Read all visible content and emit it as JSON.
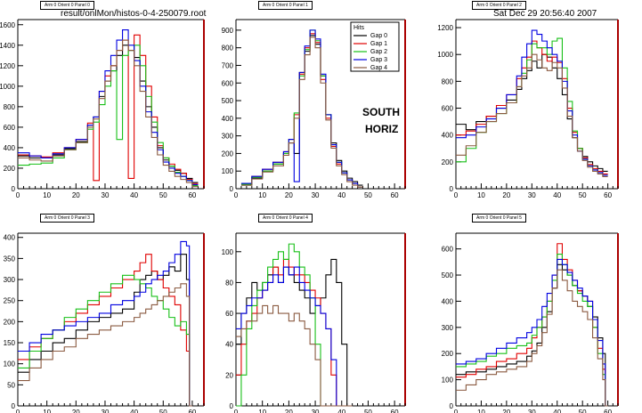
{
  "header": {
    "filename": "result/onlMon/histos-0-4-250079.root",
    "timestamp": "Sat Dec 29 20:56:40 2007"
  },
  "annotations": {
    "line1": "SOUTH",
    "line2": "HORIZ"
  },
  "legend": {
    "title": "Hits",
    "entries": [
      "Gap 0",
      "Gap 1",
      "Gap 2",
      "Gap 3",
      "Gap 4"
    ]
  },
  "colors": {
    "gap0": "#000000",
    "gap1": "#e00000",
    "gap2": "#18c018",
    "gap3": "#0000e0",
    "gap4": "#8a5a40",
    "frame_right": "#aa0000"
  },
  "chart_data": [
    {
      "type": "line",
      "panel_title": "Arm 0 Orient 0 Panel 0",
      "xlim": [
        0,
        64
      ],
      "ylim": [
        0,
        1650
      ],
      "xticks": [
        0,
        10,
        20,
        30,
        40,
        50,
        60
      ],
      "yticks": [
        0,
        200,
        400,
        600,
        800,
        1000,
        1200,
        1400,
        1600
      ],
      "x": [
        0,
        4,
        8,
        12,
        16,
        20,
        24,
        26,
        28,
        30,
        32,
        34,
        36,
        38,
        40,
        42,
        44,
        46,
        48,
        50,
        52,
        54,
        56,
        58,
        60
      ],
      "series": [
        {
          "name": "Gap 0",
          "values": [
            320,
            300,
            300,
            330,
            390,
            460,
            620,
            700,
            900,
            1050,
            1150,
            1300,
            1400,
            1350,
            1280,
            1050,
            800,
            600,
            400,
            280,
            220,
            180,
            150,
            100,
            60
          ]
        },
        {
          "name": "Gap 1",
          "values": [
            330,
            320,
            310,
            350,
            400,
            480,
            640,
            80,
            950,
            1100,
            1200,
            1350,
            1450,
            100,
            1500,
            1300,
            1000,
            700,
            420,
            300,
            240,
            190,
            150,
            90,
            50
          ]
        },
        {
          "name": "Gap 2",
          "values": [
            230,
            240,
            250,
            300,
            380,
            450,
            580,
            650,
            820,
            1000,
            1150,
            480,
            1300,
            1350,
            1400,
            1200,
            900,
            650,
            450,
            300,
            220,
            160,
            120,
            80,
            30
          ]
        },
        {
          "name": "Gap 3",
          "values": [
            350,
            320,
            300,
            340,
            400,
            480,
            620,
            700,
            950,
            1150,
            1300,
            1450,
            1550,
            1400,
            1250,
            1000,
            750,
            550,
            380,
            260,
            200,
            150,
            120,
            80,
            40
          ]
        },
        {
          "name": "Gap 4",
          "values": [
            300,
            280,
            270,
            320,
            380,
            450,
            600,
            680,
            880,
            1050,
            1200,
            1350,
            1450,
            1350,
            1200,
            950,
            700,
            500,
            330,
            230,
            170,
            120,
            90,
            60,
            20
          ]
        }
      ]
    },
    {
      "type": "line",
      "panel_title": "Arm 0 Orient 0 Panel 1",
      "xlim": [
        0,
        64
      ],
      "ylim": [
        0,
        960
      ],
      "xticks": [
        0,
        10,
        20,
        30,
        40,
        50,
        60
      ],
      "yticks": [
        0,
        100,
        200,
        300,
        400,
        500,
        600,
        700,
        800,
        900
      ],
      "x": [
        2,
        6,
        10,
        14,
        18,
        20,
        22,
        24,
        26,
        28,
        30,
        32,
        34,
        36,
        38,
        40,
        42,
        44,
        46
      ],
      "series": [
        {
          "name": "Gap 0",
          "values": [
            20,
            60,
            100,
            140,
            200,
            260,
            200,
            660,
            780,
            870,
            820,
            640,
            420,
            260,
            160,
            100,
            60,
            40,
            20
          ]
        },
        {
          "name": "Gap 1",
          "values": [
            30,
            70,
            110,
            150,
            210,
            280,
            420,
            650,
            800,
            880,
            830,
            620,
            400,
            240,
            140,
            90,
            50,
            30,
            10
          ]
        },
        {
          "name": "Gap 2",
          "values": [
            25,
            65,
            100,
            140,
            200,
            280,
            430,
            640,
            790,
            900,
            840,
            640,
            420,
            250,
            150,
            90,
            50,
            30,
            10
          ]
        },
        {
          "name": "Gap 3",
          "values": [
            30,
            70,
            110,
            150,
            210,
            280,
            40,
            660,
            810,
            900,
            850,
            650,
            420,
            250,
            150,
            90,
            50,
            30,
            10
          ]
        },
        {
          "name": "Gap 4",
          "values": [
            20,
            55,
            95,
            130,
            190,
            260,
            400,
            620,
            760,
            860,
            800,
            600,
            390,
            230,
            130,
            80,
            40,
            20,
            10
          ]
        }
      ]
    },
    {
      "type": "line",
      "panel_title": "Arm 0 Orient 0 Panel 2",
      "xlim": [
        0,
        64
      ],
      "ylim": [
        0,
        1260
      ],
      "xticks": [
        0,
        10,
        20,
        30,
        40,
        50,
        60
      ],
      "yticks": [
        0,
        200,
        400,
        600,
        800,
        1000,
        1200
      ],
      "x": [
        0,
        4,
        8,
        12,
        16,
        20,
        24,
        26,
        28,
        30,
        32,
        34,
        36,
        38,
        40,
        42,
        44,
        46,
        48,
        50,
        52,
        54,
        56,
        58
      ],
      "series": [
        {
          "name": "Gap 0",
          "values": [
            480,
            440,
            500,
            540,
            600,
            660,
            740,
            820,
            880,
            950,
            900,
            1000,
            980,
            900,
            820,
            700,
            520,
            380,
            300,
            240,
            200,
            170,
            150,
            130
          ]
        },
        {
          "name": "Gap 1",
          "values": [
            400,
            430,
            480,
            540,
            620,
            700,
            820,
            900,
            980,
            1100,
            1050,
            1000,
            950,
            980,
            940,
            820,
            600,
            420,
            300,
            230,
            180,
            150,
            130,
            110
          ]
        },
        {
          "name": "Gap 2",
          "values": [
            200,
            300,
            420,
            500,
            560,
            640,
            760,
            860,
            960,
            1080,
            1050,
            1050,
            1000,
            1100,
            1120,
            900,
            650,
            430,
            300,
            220,
            170,
            140,
            120,
            100
          ]
        },
        {
          "name": "Gap 3",
          "values": [
            380,
            400,
            460,
            520,
            600,
            700,
            840,
            980,
            1080,
            1180,
            1150,
            1100,
            1050,
            1000,
            950,
            800,
            580,
            400,
            280,
            220,
            170,
            140,
            120,
            100
          ]
        },
        {
          "name": "Gap 4",
          "values": [
            250,
            320,
            420,
            500,
            560,
            640,
            760,
            840,
            900,
            1000,
            960,
            900,
            880,
            940,
            900,
            750,
            540,
            380,
            280,
            210,
            160,
            130,
            110,
            90
          ]
        }
      ]
    },
    {
      "type": "line",
      "panel_title": "Arm 0 Orient 0 Panel 3",
      "xlim": [
        0,
        64
      ],
      "ylim": [
        0,
        410
      ],
      "xticks": [
        0,
        10,
        20,
        30,
        40,
        50,
        60
      ],
      "yticks": [
        0,
        50,
        100,
        150,
        200,
        250,
        300,
        350,
        400
      ],
      "x": [
        0,
        4,
        8,
        12,
        16,
        20,
        24,
        28,
        32,
        36,
        40,
        42,
        44,
        46,
        48,
        50,
        52,
        54,
        56,
        58,
        59
      ],
      "series": [
        {
          "name": "Gap 0",
          "values": [
            80,
            110,
            130,
            150,
            160,
            180,
            200,
            210,
            220,
            230,
            270,
            300,
            310,
            320,
            300,
            310,
            330,
            320,
            360,
            300,
            0
          ]
        },
        {
          "name": "Gap 1",
          "values": [
            110,
            140,
            160,
            180,
            200,
            220,
            240,
            260,
            280,
            300,
            320,
            340,
            360,
            320,
            300,
            280,
            260,
            240,
            180,
            130,
            0
          ]
        },
        {
          "name": "Gap 2",
          "values": [
            90,
            130,
            160,
            180,
            210,
            230,
            250,
            270,
            290,
            310,
            300,
            290,
            280,
            260,
            250,
            230,
            210,
            190,
            200,
            170,
            0
          ]
        },
        {
          "name": "Gap 3",
          "values": [
            130,
            150,
            170,
            180,
            190,
            200,
            210,
            220,
            240,
            250,
            260,
            270,
            290,
            300,
            310,
            320,
            340,
            360,
            390,
            380,
            0
          ]
        },
        {
          "name": "Gap 4",
          "values": [
            60,
            90,
            110,
            130,
            140,
            160,
            170,
            180,
            190,
            200,
            210,
            220,
            230,
            240,
            250,
            260,
            270,
            280,
            290,
            260,
            0
          ]
        }
      ]
    },
    {
      "type": "line",
      "panel_title": "Arm 0 Orient 0 Panel 4",
      "xlim": [
        0,
        64
      ],
      "ylim": [
        0,
        112
      ],
      "xticks": [
        0,
        10,
        20,
        30,
        40,
        50,
        60
      ],
      "yticks": [
        0,
        20,
        40,
        60,
        80,
        100
      ],
      "x": [
        0,
        2,
        4,
        6,
        8,
        10,
        12,
        14,
        16,
        18,
        20,
        22,
        24,
        26,
        28,
        30,
        32,
        34,
        36,
        38,
        40,
        42
      ],
      "series": [
        {
          "name": "Gap 0",
          "values": [
            40,
            60,
            70,
            80,
            75,
            80,
            85,
            90,
            80,
            90,
            85,
            80,
            75,
            70,
            60,
            65,
            70,
            85,
            95,
            80,
            40,
            0
          ]
        },
        {
          "name": "Gap 1",
          "values": [
            20,
            40,
            55,
            60,
            70,
            75,
            80,
            90,
            85,
            95,
            90,
            85,
            85,
            80,
            75,
            70,
            60,
            50,
            20,
            0,
            0,
            0
          ]
        },
        {
          "name": "Gap 2",
          "values": [
            0,
            20,
            50,
            65,
            75,
            80,
            90,
            95,
            100,
            95,
            105,
            100,
            90,
            85,
            70,
            40,
            0,
            0,
            0,
            0,
            0,
            0
          ]
        },
        {
          "name": "Gap 3",
          "values": [
            50,
            60,
            65,
            70,
            70,
            75,
            80,
            85,
            80,
            90,
            85,
            90,
            80,
            75,
            70,
            65,
            60,
            50,
            30,
            0,
            0,
            0
          ]
        },
        {
          "name": "Gap 4",
          "values": [
            45,
            50,
            55,
            55,
            60,
            65,
            60,
            65,
            60,
            60,
            55,
            60,
            55,
            50,
            40,
            30,
            0,
            0,
            0,
            0,
            0,
            0
          ]
        }
      ]
    },
    {
      "type": "line",
      "panel_title": "Arm 0 Orient 0 Panel 5",
      "xlim": [
        0,
        64
      ],
      "ylim": [
        0,
        660
      ],
      "xticks": [
        0,
        10,
        20,
        30,
        40,
        50,
        60
      ],
      "yticks": [
        0,
        100,
        200,
        300,
        400,
        500,
        600
      ],
      "x": [
        0,
        4,
        8,
        12,
        16,
        20,
        24,
        28,
        30,
        32,
        34,
        36,
        38,
        40,
        42,
        44,
        46,
        48,
        50,
        52,
        54,
        56,
        58,
        59
      ],
      "series": [
        {
          "name": "Gap 0",
          "values": [
            120,
            130,
            130,
            140,
            150,
            160,
            170,
            190,
            210,
            240,
            300,
            360,
            450,
            540,
            520,
            500,
            460,
            440,
            420,
            380,
            340,
            260,
            200,
            0
          ]
        },
        {
          "name": "Gap 1",
          "values": [
            110,
            120,
            140,
            150,
            170,
            180,
            200,
            220,
            260,
            300,
            340,
            400,
            500,
            620,
            560,
            520,
            480,
            440,
            420,
            400,
            300,
            220,
            140,
            0
          ]
        },
        {
          "name": "Gap 2",
          "values": [
            150,
            160,
            170,
            190,
            200,
            220,
            230,
            240,
            270,
            300,
            340,
            400,
            480,
            580,
            540,
            500,
            460,
            430,
            400,
            380,
            300,
            200,
            120,
            0
          ]
        },
        {
          "name": "Gap 3",
          "values": [
            160,
            170,
            180,
            200,
            220,
            240,
            260,
            280,
            300,
            330,
            380,
            430,
            500,
            560,
            540,
            510,
            480,
            450,
            420,
            400,
            330,
            250,
            160,
            0
          ]
        },
        {
          "name": "Gap 4",
          "values": [
            60,
            80,
            100,
            120,
            130,
            140,
            150,
            170,
            200,
            230,
            280,
            350,
            450,
            520,
            480,
            440,
            400,
            380,
            360,
            330,
            260,
            180,
            100,
            0
          ]
        }
      ]
    }
  ]
}
